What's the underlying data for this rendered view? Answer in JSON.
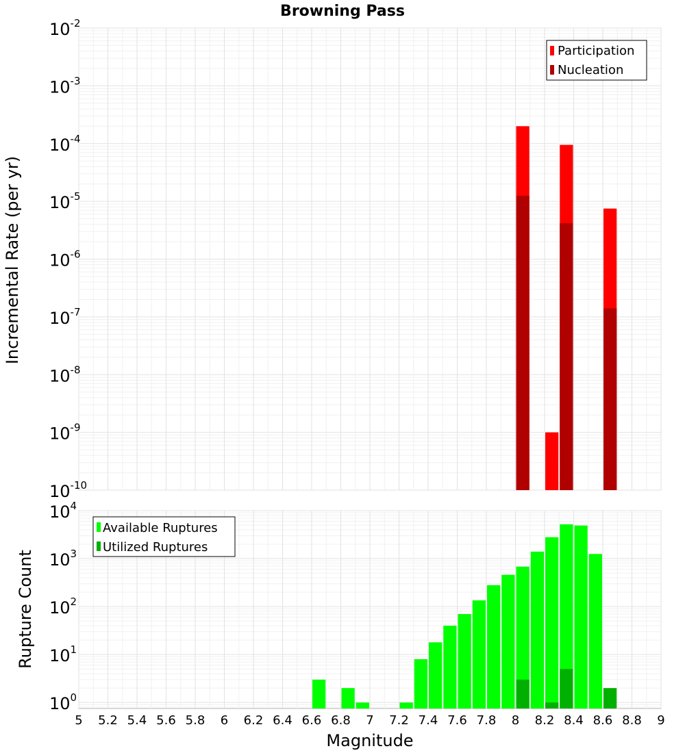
{
  "colors": {
    "participation": "#ff0000",
    "nucleation": "#b00000",
    "available": "#00ff00",
    "utilized": "#00b000"
  },
  "chart_data": [
    {
      "type": "bar",
      "title": "Browning Pass",
      "xlabel": "",
      "ylabel": "Incremental Rate (per yr)",
      "yscale": "log",
      "xlim": [
        5,
        9
      ],
      "ylim": [
        1e-10,
        0.01
      ],
      "y_ticks": [
        {
          "base": "10",
          "exp": "-2"
        },
        {
          "base": "10",
          "exp": "-3"
        },
        {
          "base": "10",
          "exp": "-4"
        },
        {
          "base": "10",
          "exp": "-5"
        },
        {
          "base": "10",
          "exp": "-6"
        },
        {
          "base": "10",
          "exp": "-7"
        },
        {
          "base": "10",
          "exp": "-8"
        },
        {
          "base": "10",
          "exp": "-9"
        },
        {
          "base": "10",
          "exp": "-10"
        }
      ],
      "legend": {
        "position": "top-right",
        "entries": [
          "Participation",
          "Nucleation"
        ]
      },
      "series": [
        {
          "name": "Participation",
          "x": [
            8.05,
            8.25,
            8.35,
            8.65
          ],
          "values": [
            0.0002,
            1e-09,
            9.5e-05,
            7.5e-06
          ]
        },
        {
          "name": "Nucleation",
          "x": [
            8.05,
            8.35,
            8.65
          ],
          "values": [
            1.25e-05,
            4.2e-06,
            1.4e-07
          ]
        }
      ]
    },
    {
      "type": "bar",
      "title": "",
      "xlabel": "Magnitude",
      "ylabel": "Rupture Count",
      "yscale": "log",
      "xlim": [
        5,
        9
      ],
      "ylim": [
        0.75,
        10000
      ],
      "x_ticks": [
        "5",
        "5.2",
        "5.4",
        "5.6",
        "5.8",
        "6",
        "6.2",
        "6.4",
        "6.6",
        "6.8",
        "7",
        "7.2",
        "7.4",
        "7.6",
        "7.8",
        "8",
        "8.2",
        "8.4",
        "8.6",
        "8.8",
        "9"
      ],
      "y_ticks": [
        {
          "base": "10",
          "exp": "4"
        },
        {
          "base": "10",
          "exp": "3"
        },
        {
          "base": "10",
          "exp": "2"
        },
        {
          "base": "10",
          "exp": "1"
        },
        {
          "base": "10",
          "exp": "0"
        }
      ],
      "legend": {
        "position": "top-left",
        "entries": [
          "Available Ruptures",
          "Utilized Ruptures"
        ]
      },
      "series": [
        {
          "name": "Available Ruptures",
          "x": [
            6.65,
            6.85,
            6.95,
            7.25,
            7.35,
            7.45,
            7.55,
            7.65,
            7.75,
            7.85,
            7.95,
            8.05,
            8.15,
            8.25,
            8.35,
            8.45,
            8.55
          ],
          "values": [
            3,
            2,
            1,
            1,
            8,
            18,
            40,
            70,
            135,
            280,
            460,
            680,
            1400,
            2800,
            5200,
            4900,
            1250
          ]
        },
        {
          "name": "Utilized Ruptures",
          "x": [
            8.05,
            8.25,
            8.35,
            8.65
          ],
          "values": [
            3,
            1,
            5,
            2
          ]
        }
      ]
    }
  ]
}
